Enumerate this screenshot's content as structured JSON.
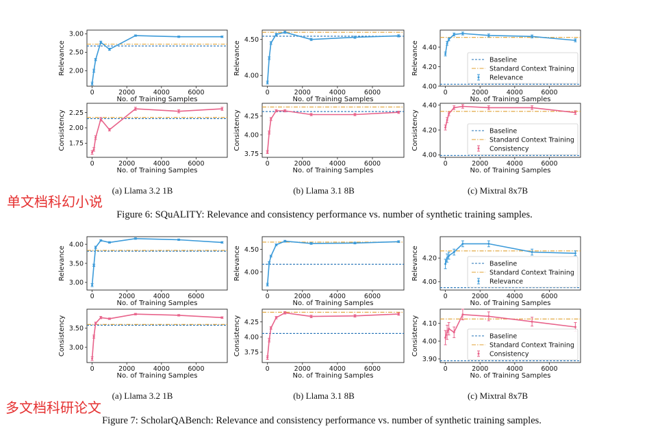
{
  "figures": [
    {
      "caption": "Figure 6: SQuALITY: Relevance and consistency performance vs. number of synthetic training samples.",
      "annotation": "单文档科幻小说",
      "sublabels": [
        "(a) Llama 3.2 1B",
        "(b) Llama 3.1 8B",
        "(c) Mixtral 8x7B"
      ]
    },
    {
      "caption": "Figure 7: ScholarQABench: Relevance and consistency performance vs. number of synthetic training samples.",
      "annotation": "多文档科研论文",
      "sublabels": [
        "(a) Llama 3.2 1B",
        "(b) Llama 3.1 8B",
        "(c) Mixtral 8x7B"
      ]
    }
  ],
  "colors": {
    "relevance": "#3b9ad9",
    "consistency": "#e8628a",
    "baseline": "#1f6fb5",
    "standard": "#e0a030",
    "annotation": "#e53030"
  },
  "chart_data": [
    {
      "type": "line",
      "figure": 0,
      "column": 0,
      "metric": "Relevance",
      "xlabel": "No. of Training Samples",
      "ylabel": "Relevance",
      "xlim": [
        -300,
        7800
      ],
      "ylim": [
        1.58,
        3.1
      ],
      "xticks": [
        0,
        2000,
        4000,
        6000
      ],
      "yticks": [
        2.0,
        2.5,
        3.0
      ],
      "ytick_labels": [
        "2.00",
        "2.50",
        "3.00"
      ],
      "baseline": 2.67,
      "standard": 2.72,
      "legend": false,
      "series": [
        {
          "name": "Relevance",
          "x": [
            0,
            100,
            200,
            500,
            1000,
            2500,
            5000,
            7500
          ],
          "y": [
            1.65,
            2.0,
            2.3,
            2.77,
            2.58,
            2.95,
            2.92,
            2.92
          ],
          "err": [
            0.04,
            0.04,
            0.03,
            0.03,
            0.03,
            0.02,
            0.02,
            0.02
          ]
        }
      ]
    },
    {
      "type": "line",
      "figure": 0,
      "column": 1,
      "metric": "Relevance",
      "xlabel": "No. of Training Samples",
      "ylabel": "Relevance",
      "xlim": [
        -300,
        7800
      ],
      "ylim": [
        3.85,
        4.63
      ],
      "xticks": [
        0,
        2000,
        4000,
        6000
      ],
      "yticks": [
        4.0,
        4.5
      ],
      "ytick_labels": [
        "4.00",
        "4.50"
      ],
      "baseline": 4.545,
      "standard": 4.6,
      "legend": false,
      "series": [
        {
          "name": "Relevance",
          "x": [
            0,
            100,
            200,
            500,
            1000,
            2500,
            5000,
            7500
          ],
          "y": [
            3.9,
            4.24,
            4.45,
            4.57,
            4.6,
            4.5,
            4.53,
            4.55
          ],
          "err": [
            0.02,
            0.02,
            0.02,
            0.015,
            0.015,
            0.015,
            0.015,
            0.015
          ]
        }
      ]
    },
    {
      "type": "line",
      "figure": 0,
      "column": 2,
      "metric": "Relevance",
      "xlabel": "No. of Training Samples",
      "ylabel": "Relevance",
      "xlim": [
        -300,
        7800
      ],
      "ylim": [
        4.0,
        4.575
      ],
      "xticks": [
        0,
        2000,
        4000,
        6000
      ],
      "yticks": [
        4.0,
        4.2,
        4.4
      ],
      "ytick_labels": [
        "4.00",
        "4.20",
        "4.40"
      ],
      "baseline": 4.02,
      "standard": 4.5,
      "legend": true,
      "legend_labels": [
        "Baseline",
        "Standard Context Training",
        "Relevance"
      ],
      "series": [
        {
          "name": "Relevance",
          "x": [
            0,
            100,
            200,
            500,
            1000,
            2500,
            5000,
            7500
          ],
          "y": [
            4.33,
            4.44,
            4.48,
            4.53,
            4.54,
            4.52,
            4.51,
            4.47
          ],
          "err": [
            0.02,
            0.02,
            0.015,
            0.015,
            0.015,
            0.015,
            0.015,
            0.015
          ]
        }
      ]
    },
    {
      "type": "line",
      "figure": 0,
      "column": 0,
      "metric": "Consistency",
      "xlabel": "No. of Training Samples",
      "ylabel": "Consistency",
      "xlim": [
        -300,
        7800
      ],
      "ylim": [
        1.52,
        2.4
      ],
      "xticks": [
        0,
        2000,
        4000,
        6000
      ],
      "yticks": [
        1.75,
        2.0,
        2.25
      ],
      "ytick_labels": [
        "1.75",
        "2.00",
        "2.25"
      ],
      "baseline": 2.15,
      "standard": 2.17,
      "legend": false,
      "series": [
        {
          "name": "Consistency",
          "x": [
            0,
            100,
            200,
            500,
            1000,
            2500,
            5000,
            7500
          ],
          "y": [
            1.6,
            1.65,
            1.84,
            2.14,
            1.97,
            2.31,
            2.27,
            2.31
          ],
          "err": [
            0.03,
            0.03,
            0.03,
            0.03,
            0.02,
            0.025,
            0.025,
            0.025
          ]
        }
      ]
    },
    {
      "type": "line",
      "figure": 0,
      "column": 1,
      "metric": "Consistency",
      "xlabel": "No. of Training Samples",
      "ylabel": "Consistency",
      "xlim": [
        -300,
        7800
      ],
      "ylim": [
        3.7,
        4.42
      ],
      "xticks": [
        0,
        2000,
        4000,
        6000
      ],
      "yticks": [
        3.75,
        4.0,
        4.25
      ],
      "ytick_labels": [
        "3.75",
        "4.00",
        "4.25"
      ],
      "baseline": 4.31,
      "standard": 4.37,
      "legend": false,
      "series": [
        {
          "name": "Consistency",
          "x": [
            0,
            100,
            200,
            500,
            1000,
            2500,
            5000,
            7500
          ],
          "y": [
            3.77,
            4.03,
            4.21,
            4.32,
            4.32,
            4.27,
            4.27,
            4.3
          ],
          "err": [
            0.02,
            0.02,
            0.02,
            0.015,
            0.015,
            0.015,
            0.015,
            0.015
          ]
        }
      ]
    },
    {
      "type": "line",
      "figure": 0,
      "column": 2,
      "metric": "Consistency",
      "xlabel": "No. of Training Samples",
      "ylabel": "Consistency",
      "xlim": [
        -300,
        7800
      ],
      "ylim": [
        3.98,
        4.415
      ],
      "xticks": [
        0,
        2000,
        4000,
        6000
      ],
      "yticks": [
        4.0,
        4.2,
        4.4
      ],
      "ytick_labels": [
        "4.00",
        "4.20",
        "4.40"
      ],
      "baseline": 3.995,
      "standard": 4.35,
      "legend": true,
      "legend_labels": [
        "Baseline",
        "Standard Context Training",
        "Consistency"
      ],
      "series": [
        {
          "name": "Consistency",
          "x": [
            0,
            100,
            200,
            500,
            1000,
            2500,
            5000,
            7500
          ],
          "y": [
            4.22,
            4.28,
            4.33,
            4.38,
            4.39,
            4.38,
            4.38,
            4.34
          ],
          "err": [
            0.02,
            0.02,
            0.015,
            0.015,
            0.015,
            0.015,
            0.015,
            0.015
          ]
        }
      ]
    },
    {
      "type": "line",
      "figure": 1,
      "column": 0,
      "metric": "Relevance",
      "xlabel": "No. of Training Samples",
      "ylabel": "Relevance",
      "xlim": [
        -300,
        7800
      ],
      "ylim": [
        2.8,
        4.2
      ],
      "xticks": [
        0,
        2000,
        4000,
        6000
      ],
      "yticks": [
        3.0,
        3.5,
        4.0
      ],
      "ytick_labels": [
        "3.00",
        "3.50",
        "4.00"
      ],
      "baseline": 3.82,
      "standard": 3.84,
      "legend": false,
      "series": [
        {
          "name": "Relevance",
          "x": [
            0,
            100,
            200,
            500,
            1000,
            2500,
            5000,
            7500
          ],
          "y": [
            2.93,
            3.45,
            3.92,
            4.1,
            4.05,
            4.15,
            4.12,
            4.05
          ],
          "err": [
            0.04,
            0.03,
            0.03,
            0.02,
            0.02,
            0.02,
            0.02,
            0.02
          ]
        }
      ]
    },
    {
      "type": "line",
      "figure": 1,
      "column": 1,
      "metric": "Relevance",
      "xlabel": "No. of Training Samples",
      "ylabel": "Relevance",
      "xlim": [
        -300,
        7800
      ],
      "ylim": [
        3.6,
        4.78
      ],
      "xticks": [
        0,
        2000,
        4000,
        6000
      ],
      "yticks": [
        4.0,
        4.5
      ],
      "ytick_labels": [
        "4.00",
        "4.50"
      ],
      "baseline": 4.17,
      "standard": 4.66,
      "legend": false,
      "series": [
        {
          "name": "Relevance",
          "x": [
            0,
            100,
            200,
            500,
            1000,
            2500,
            5000,
            7500
          ],
          "y": [
            3.72,
            4.2,
            4.35,
            4.6,
            4.68,
            4.63,
            4.64,
            4.67
          ],
          "err": [
            0.03,
            0.03,
            0.02,
            0.02,
            0.02,
            0.02,
            0.02,
            0.02
          ]
        }
      ]
    },
    {
      "type": "line",
      "figure": 1,
      "column": 2,
      "metric": "Relevance",
      "xlabel": "No. of Training Samples",
      "ylabel": "Relevance",
      "xlim": [
        -300,
        7800
      ],
      "ylim": [
        3.93,
        4.38
      ],
      "xticks": [
        0,
        2000,
        4000,
        6000
      ],
      "yticks": [
        4.0,
        4.2
      ],
      "ytick_labels": [
        "4.00",
        "4.20"
      ],
      "baseline": 3.95,
      "standard": 4.26,
      "legend": true,
      "legend_labels": [
        "Baseline",
        "Standard Context Training",
        "Relevance"
      ],
      "series": [
        {
          "name": "Relevance",
          "x": [
            0,
            100,
            200,
            500,
            1000,
            2500,
            5000,
            7500
          ],
          "y": [
            4.15,
            4.2,
            4.22,
            4.25,
            4.32,
            4.32,
            4.25,
            4.24
          ],
          "err": [
            0.04,
            0.035,
            0.03,
            0.025,
            0.025,
            0.025,
            0.025,
            0.02
          ]
        }
      ]
    },
    {
      "type": "line",
      "figure": 1,
      "column": 0,
      "metric": "Consistency",
      "xlabel": "No. of Training Samples",
      "ylabel": "Consistency",
      "xlim": [
        -300,
        7800
      ],
      "ylim": [
        2.6,
        4.0
      ],
      "xticks": [
        0,
        2000,
        4000,
        6000
      ],
      "yticks": [
        3.0,
        3.5
      ],
      "ytick_labels": [
        "3.00",
        "3.50"
      ],
      "baseline": 3.58,
      "standard": 3.6,
      "legend": false,
      "series": [
        {
          "name": "Consistency",
          "x": [
            0,
            100,
            200,
            500,
            1000,
            2500,
            5000,
            7500
          ],
          "y": [
            2.7,
            3.28,
            3.63,
            3.78,
            3.75,
            3.87,
            3.84,
            3.78
          ],
          "err": [
            0.05,
            0.04,
            0.03,
            0.03,
            0.02,
            0.02,
            0.02,
            0.02
          ]
        }
      ]
    },
    {
      "type": "line",
      "figure": 1,
      "column": 1,
      "metric": "Consistency",
      "xlabel": "No. of Training Samples",
      "ylabel": "Consistency",
      "xlim": [
        -300,
        7800
      ],
      "ylim": [
        3.58,
        4.46
      ],
      "xticks": [
        0,
        2000,
        4000,
        6000
      ],
      "yticks": [
        3.75,
        4.0,
        4.25
      ],
      "ytick_labels": [
        "3.75",
        "4.00",
        "4.25"
      ],
      "baseline": 4.06,
      "standard": 4.41,
      "legend": false,
      "series": [
        {
          "name": "Consistency",
          "x": [
            0,
            100,
            200,
            500,
            1000,
            2500,
            5000,
            7500
          ],
          "y": [
            3.66,
            3.95,
            4.15,
            4.32,
            4.4,
            4.34,
            4.35,
            4.38
          ],
          "err": [
            0.03,
            0.03,
            0.02,
            0.02,
            0.02,
            0.02,
            0.02,
            0.02
          ]
        }
      ]
    },
    {
      "type": "line",
      "figure": 1,
      "column": 2,
      "metric": "Consistency",
      "xlabel": "No. of Training Samples",
      "ylabel": "Consistency",
      "xlim": [
        -300,
        7800
      ],
      "ylim": [
        3.88,
        4.18
      ],
      "xticks": [
        0,
        2000,
        4000,
        6000
      ],
      "yticks": [
        3.9,
        4.0,
        4.1
      ],
      "ytick_labels": [
        "3.90",
        "4.00",
        "4.10"
      ],
      "baseline": 3.89,
      "standard": 4.125,
      "legend": true,
      "legend_labels": [
        "Baseline",
        "Standard Context Training",
        "Consistency"
      ],
      "series": [
        {
          "name": "Consistency",
          "x": [
            0,
            100,
            200,
            500,
            1000,
            2500,
            5000,
            7500
          ],
          "y": [
            4.02,
            4.05,
            4.07,
            4.05,
            4.15,
            4.14,
            4.11,
            4.08
          ],
          "err": [
            0.04,
            0.04,
            0.035,
            0.03,
            0.03,
            0.025,
            0.025,
            0.025
          ]
        }
      ]
    }
  ]
}
